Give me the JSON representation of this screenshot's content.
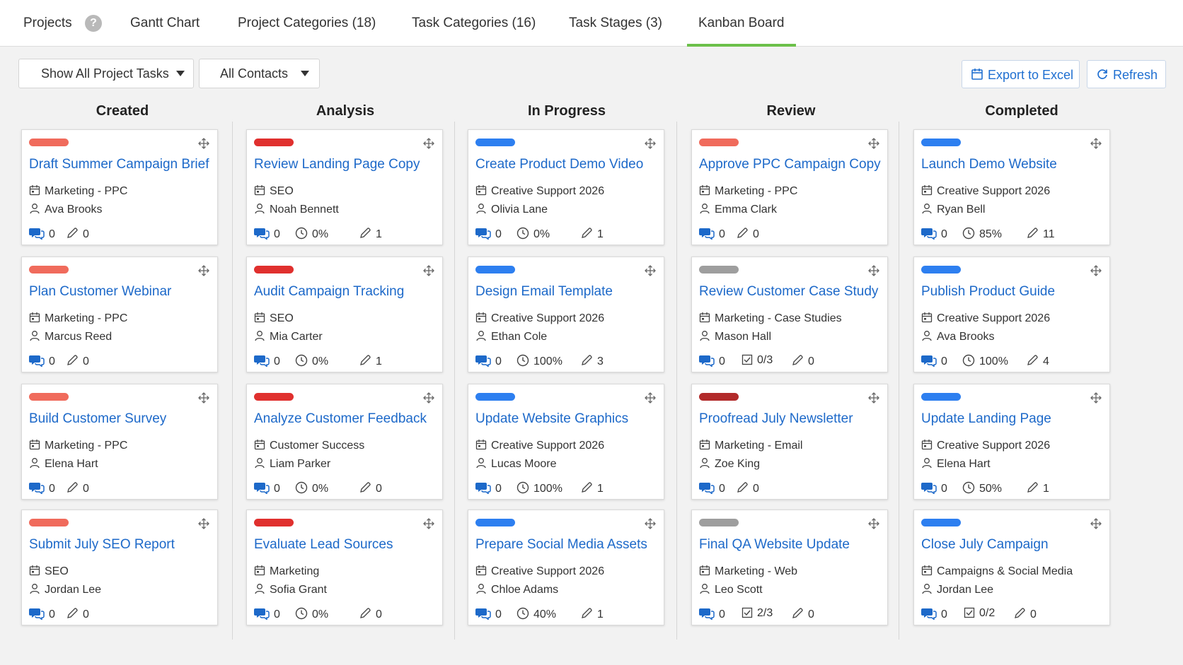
{
  "tabs": [
    {
      "label": "Projects",
      "active": false
    },
    {
      "label": "Gantt Chart",
      "active": false
    },
    {
      "label": "Project Categories (18)",
      "active": false
    },
    {
      "label": "Task Categories (16)",
      "active": false
    },
    {
      "label": "Task Stages (3)",
      "active": false
    },
    {
      "label": "Kanban Board",
      "active": true
    }
  ],
  "help_label": "?",
  "toolbar": {
    "filter_tasks": "Show All Project Tasks",
    "filter_contacts": "All Contacts",
    "export_label": "Export to Excel",
    "refresh_label": "Refresh"
  },
  "colors": {
    "accent": "#6cc04a",
    "link": "#1d69c9",
    "salmon": "#f06b5c",
    "red": "#e0302e",
    "blue": "#2d7ff0",
    "gray": "#9e9e9e",
    "darkred": "#b22a2a"
  },
  "columns": [
    {
      "name": "Created",
      "cards": [
        {
          "color": "salmon",
          "title": "Draft Summer Campaign Brief",
          "category": "Marketing - PPC",
          "assignee": "Ava Brooks",
          "comments": "0",
          "edits": "0"
        },
        {
          "color": "salmon",
          "title": "Plan Customer Webinar",
          "category": "Marketing - PPC",
          "assignee": "Marcus Reed",
          "comments": "0",
          "edits": "0"
        },
        {
          "color": "salmon",
          "title": "Build Customer Survey",
          "category": "Marketing - PPC",
          "assignee": "Elena Hart",
          "comments": "0",
          "edits": "0"
        },
        {
          "color": "salmon",
          "title": "Submit July SEO Report",
          "category": "SEO",
          "assignee": "Jordan Lee",
          "comments": "0",
          "edits": "0"
        }
      ]
    },
    {
      "name": "Analysis",
      "cards": [
        {
          "color": "red",
          "title": "Review Landing Page Copy",
          "category": "SEO",
          "assignee": "Noah Bennett",
          "comments": "0",
          "progress": "0%",
          "edits": "1"
        },
        {
          "color": "red",
          "title": "Audit Campaign Tracking",
          "category": "SEO",
          "assignee": "Mia Carter",
          "comments": "0",
          "progress": "0%",
          "edits": "1"
        },
        {
          "color": "red",
          "title": "Analyze Customer Feedback",
          "category": "Customer Success",
          "assignee": "Liam Parker",
          "comments": "0",
          "progress": "0%",
          "edits": "0"
        },
        {
          "color": "red",
          "title": "Evaluate Lead Sources",
          "category": "Marketing",
          "assignee": "Sofia Grant",
          "comments": "0",
          "progress": "0%",
          "edits": "0"
        }
      ]
    },
    {
      "name": "In Progress",
      "cards": [
        {
          "color": "blue",
          "title": "Create Product Demo Video",
          "category": "Creative Support 2026",
          "assignee": "Olivia Lane",
          "comments": "0",
          "progress": "0%",
          "edits": "1"
        },
        {
          "color": "blue",
          "title": "Design Email Template",
          "category": "Creative Support 2026",
          "assignee": "Ethan Cole",
          "comments": "0",
          "progress": "100%",
          "edits": "3"
        },
        {
          "color": "blue",
          "title": "Update Website Graphics",
          "category": "Creative Support 2026",
          "assignee": "Lucas Moore",
          "comments": "0",
          "progress": "100%",
          "edits": "1"
        },
        {
          "color": "blue",
          "title": "Prepare Social Media Assets",
          "category": "Creative Support 2026",
          "assignee": "Chloe Adams",
          "comments": "0",
          "progress": "40%",
          "edits": "1"
        }
      ]
    },
    {
      "name": "Review",
      "cards": [
        {
          "color": "salmon",
          "title": "Approve PPC Campaign Copy",
          "category": "Marketing - PPC",
          "assignee": "Emma Clark",
          "comments": "0",
          "edits": "0"
        },
        {
          "color": "gray",
          "title": "Review Customer Case Study",
          "category": "Marketing - Case Studies",
          "assignee": "Mason Hall",
          "comments": "0",
          "checklist": "0/3",
          "edits": "0"
        },
        {
          "color": "darkred",
          "title": "Proofread July Newsletter",
          "category": "Marketing - Email",
          "assignee": "Zoe King",
          "comments": "0",
          "edits": "0"
        },
        {
          "color": "gray",
          "title": "Final QA Website Update",
          "category": "Marketing - Web",
          "assignee": "Leo Scott",
          "comments": "0",
          "checklist": "2/3",
          "edits": "0"
        }
      ]
    },
    {
      "name": "Completed",
      "cards": [
        {
          "color": "blue",
          "title": "Launch Demo Website",
          "category": "Creative Support 2026",
          "assignee": "Ryan Bell",
          "comments": "0",
          "progress": "85%",
          "edits": "11"
        },
        {
          "color": "blue",
          "title": "Publish Product Guide",
          "category": "Creative Support 2026",
          "assignee": "Ava Brooks",
          "comments": "0",
          "progress": "100%",
          "edits": "4"
        },
        {
          "color": "blue",
          "title": "Update Landing Page",
          "category": "Creative Support 2026",
          "assignee": "Elena Hart",
          "comments": "0",
          "progress": "50%",
          "edits": "1"
        },
        {
          "color": "blue",
          "title": "Close July Campaign",
          "category": "Campaigns & Social Media",
          "assignee": "Jordan Lee",
          "comments": "0",
          "checklist": "0/2",
          "edits": "0"
        }
      ]
    }
  ]
}
